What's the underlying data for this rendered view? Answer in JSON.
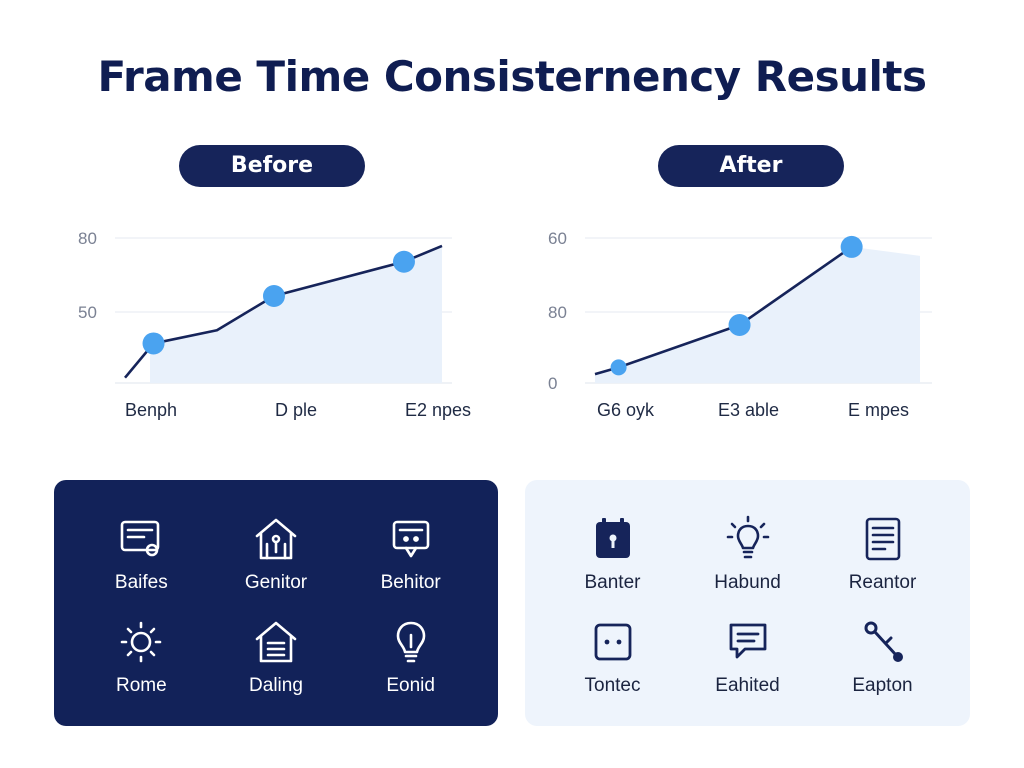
{
  "title": "Frame Time Consisternency Results",
  "before_label": "Before",
  "after_label": "After",
  "colors": {
    "navy": "#16245a",
    "accent": "#4aa3f0",
    "fill": "#e9f1fb",
    "grid": "#e5e9f0"
  },
  "chart_data": [
    {
      "type": "line",
      "panel": "Before",
      "y_ticks": [
        "80",
        "50"
      ],
      "categories": [
        "Benph",
        "D ple",
        "E2 npes"
      ],
      "ylim": [
        30,
        85
      ],
      "grid": true,
      "series": [
        {
          "points": [
            {
              "x": 0.0,
              "y": 32
            },
            {
              "x": 0.09,
              "y": 45
            },
            {
              "x": 0.29,
              "y": 50
            },
            {
              "x": 0.47,
              "y": 63
            },
            {
              "x": 0.88,
              "y": 76
            },
            {
              "x": 1.0,
              "y": 82
            }
          ],
          "markers": [
            1,
            3,
            4
          ]
        }
      ]
    },
    {
      "type": "line",
      "panel": "After",
      "y_ticks": [
        "60",
        "80",
        "0"
      ],
      "categories": [
        "G6 oyk",
        "E3 able",
        "E mpes"
      ],
      "ylim": [
        0,
        65
      ],
      "grid": true,
      "series": [
        {
          "points": [
            {
              "x": 0.0,
              "y": 4
            },
            {
              "x": 0.08,
              "y": 7
            },
            {
              "x": 0.49,
              "y": 26
            },
            {
              "x": 0.87,
              "y": 61
            }
          ],
          "area_end": 57,
          "markers": [
            1,
            2,
            3
          ]
        }
      ]
    }
  ],
  "before_panel": {
    "items": [
      {
        "label": "Baifes",
        "icon": "certificate-icon"
      },
      {
        "label": "Genitor",
        "icon": "house-icon"
      },
      {
        "label": "Behitor",
        "icon": "chat-bubble-icon"
      },
      {
        "label": "Rome",
        "icon": "sun-icon"
      },
      {
        "label": "Daling",
        "icon": "home-list-icon"
      },
      {
        "label": "Eonid",
        "icon": "lightbulb-icon"
      }
    ]
  },
  "after_panel": {
    "items": [
      {
        "label": "Banter",
        "icon": "calendar-lock-icon"
      },
      {
        "label": "Habund",
        "icon": "lightbulb-rays-icon"
      },
      {
        "label": "Reantor",
        "icon": "document-icon"
      },
      {
        "label": "Tontec",
        "icon": "dots-square-icon"
      },
      {
        "label": "Eahited",
        "icon": "chat-lines-icon"
      },
      {
        "label": "Eapton",
        "icon": "wrench-icon"
      }
    ]
  }
}
